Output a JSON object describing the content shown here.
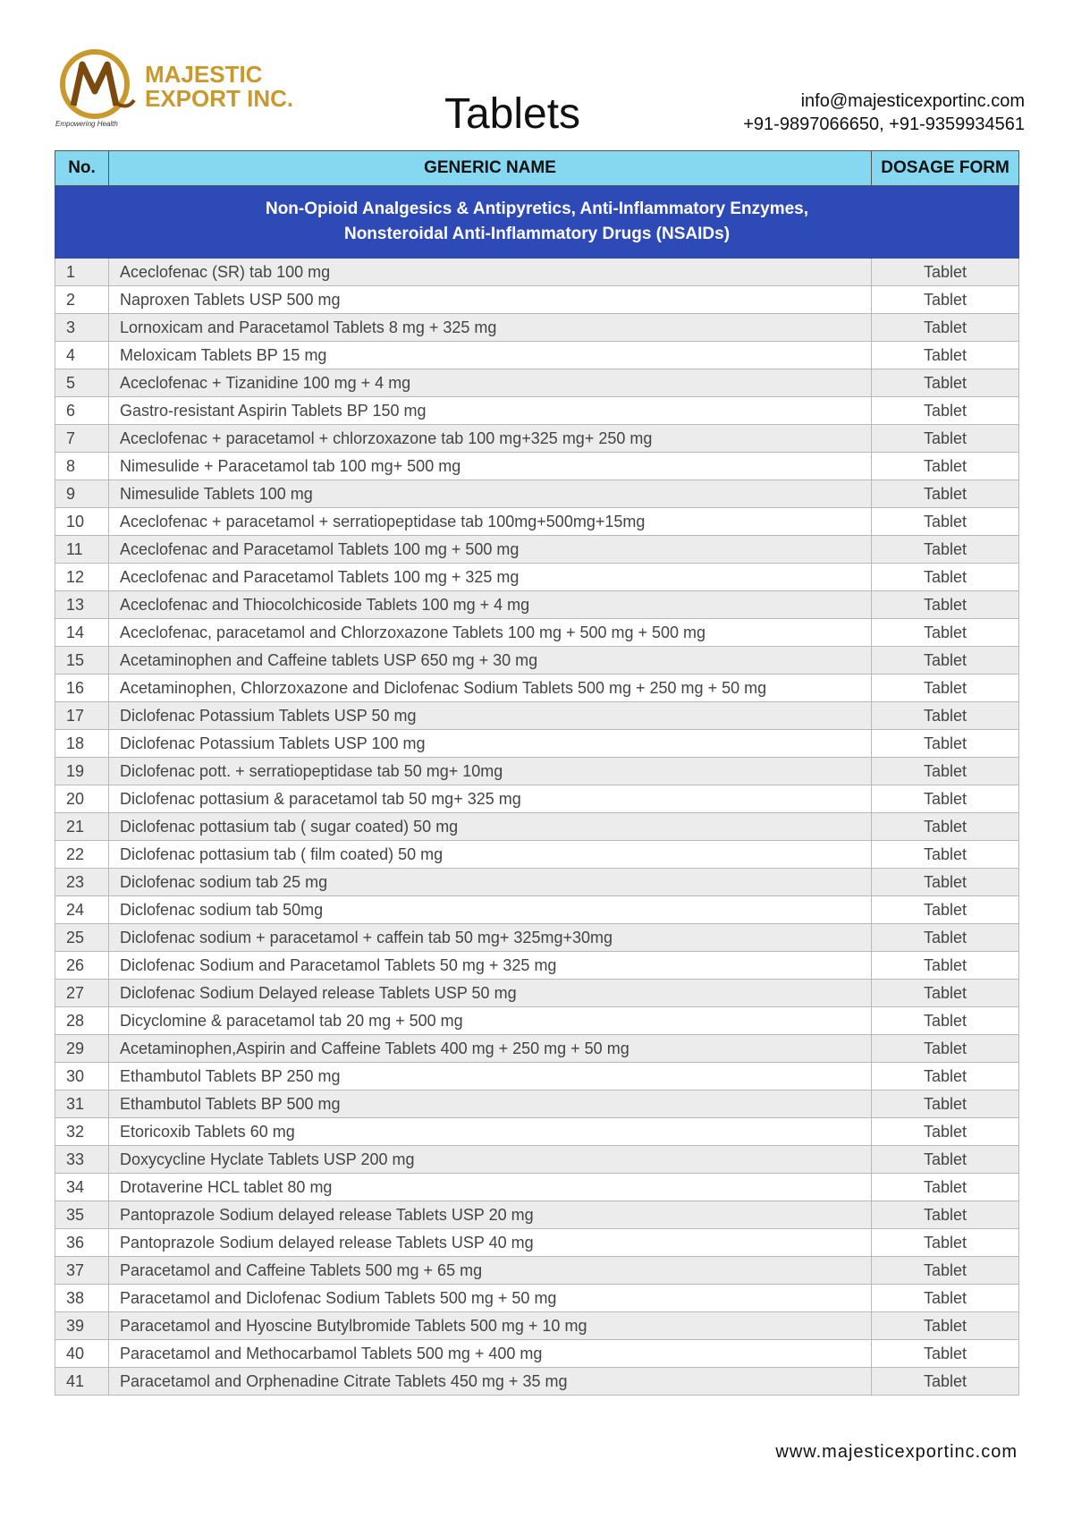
{
  "header": {
    "brand_line1": "MAJESTIC",
    "brand_line2": "EXPORT INC.",
    "tagline": "Empowering Health",
    "title": "Tablets",
    "email": "info@majesticexportinc.com",
    "phone": "+91-9897066650, +91-9359934561"
  },
  "table": {
    "columns": [
      "No.",
      "GENERIC  NAME",
      "DOSAGE FORM"
    ],
    "section": [
      "Non-Opioid Analgesics & Antipyretics,  Anti-Inflammatory Enzymes,",
      "Nonsteroidal Anti-Inflammatory Drugs (NSAIDs)"
    ],
    "rows": [
      [
        "1",
        "Aceclofenac  (SR) tab 100 mg",
        "Tablet"
      ],
      [
        "2",
        "Naproxen Tablets USP   500 mg",
        "Tablet"
      ],
      [
        "3",
        "Lornoxicam and Paracetamol Tablets  8 mg + 325 mg",
        "Tablet"
      ],
      [
        "4",
        "Meloxicam Tablets BP   15 mg",
        "Tablet"
      ],
      [
        "5",
        "Aceclofenac  + Tizanidine  100 mg + 4 mg",
        "Tablet"
      ],
      [
        "6",
        "Gastro-resistant Aspirin Tablets BP  150 mg",
        "Tablet"
      ],
      [
        "7",
        "Aceclofenac + paracetamol + chlorzoxazone tab 100 mg+325 mg+ 250 mg",
        "Tablet"
      ],
      [
        "8",
        "Nimesulide  + Paracetamol tab 100 mg+ 500 mg",
        "Tablet"
      ],
      [
        "9",
        "Nimesulide Tablets  100 mg",
        "Tablet"
      ],
      [
        "10",
        "Aceclofenac + paracetamol + serratiopeptidase  tab 100mg+500mg+15mg",
        "Tablet"
      ],
      [
        "11",
        "Aceclofenac and Paracetamol Tablets  100 mg + 500 mg",
        "Tablet"
      ],
      [
        "12",
        "Aceclofenac and Paracetamol Tablets  100 mg + 325 mg",
        "Tablet"
      ],
      [
        "13",
        "Aceclofenac and Thiocolchicoside Tablets  100 mg +  4 mg",
        "Tablet"
      ],
      [
        "14",
        "Aceclofenac, paracetamol and Chlorzoxazone Tablets  100 mg + 500 mg + 500 mg",
        "Tablet"
      ],
      [
        "15",
        "Acetaminophen and Caffeine tablets USP  650 mg + 30 mg",
        "Tablet"
      ],
      [
        "16",
        "Acetaminophen, Chlorzoxazone and Diclofenac Sodium Tablets  500 mg + 250 mg + 50 mg",
        "Tablet"
      ],
      [
        "17",
        "Diclofenac Potassium Tablets USP    50 mg",
        "Tablet"
      ],
      [
        "18",
        "Diclofenac Potassium Tablets USP    100 mg",
        "Tablet"
      ],
      [
        "19",
        "Diclofenac pott. + serratiopeptidase tab 50 mg+ 10mg",
        "Tablet"
      ],
      [
        "20",
        "Diclofenac pottasium  & paracetamol tab 50 mg+ 325 mg",
        "Tablet"
      ],
      [
        "21",
        "Diclofenac pottasium  tab ( sugar coated) 50 mg",
        "Tablet"
      ],
      [
        "22",
        "Diclofenac pottasium tab ( film coated) 50 mg",
        "Tablet"
      ],
      [
        "23",
        "Diclofenac sodium  tab 25 mg",
        "Tablet"
      ],
      [
        "24",
        "Diclofenac sodium  tab 50mg",
        "Tablet"
      ],
      [
        "25",
        "Diclofenac sodium + paracetamol + caffein tab 50 mg+ 325mg+30mg",
        "Tablet"
      ],
      [
        "26",
        "Diclofenac Sodium and Paracetamol Tablets   50 mg + 325 mg",
        "Tablet"
      ],
      [
        "27",
        "Diclofenac Sodium Delayed release Tablets USP   50 mg",
        "Tablet"
      ],
      [
        "28",
        "Dicyclomine & paracetamol tab 20 mg + 500 mg",
        "Tablet"
      ],
      [
        "29",
        "Acetaminophen,Aspirin and Caffeine Tablets  400 mg + 250 mg + 50 mg",
        "Tablet"
      ],
      [
        "30",
        "Ethambutol Tablets BP   250 mg",
        "Tablet"
      ],
      [
        "31",
        "Ethambutol Tablets BP   500 mg",
        "Tablet"
      ],
      [
        "32",
        "Etoricoxib Tablets   60 mg",
        "Tablet"
      ],
      [
        "33",
        "Doxycycline Hyclate Tablets USP   200 mg",
        "Tablet"
      ],
      [
        "34",
        "Drotaverine  HCL tablet 80 mg",
        "Tablet"
      ],
      [
        "35",
        "Pantoprazole Sodium delayed release Tablets USP   20 mg",
        "Tablet"
      ],
      [
        "36",
        "Pantoprazole Sodium delayed release Tablets USP   40 mg",
        "Tablet"
      ],
      [
        "37",
        "Paracetamol and Caffeine Tablets   500 mg + 65 mg",
        "Tablet"
      ],
      [
        "38",
        "Paracetamol and Diclofenac Sodium Tablets  500 mg + 50 mg",
        "Tablet"
      ],
      [
        "39",
        "Paracetamol and Hyoscine Butylbromide Tablets  500 mg + 10 mg",
        "Tablet"
      ],
      [
        "40",
        "Paracetamol and Methocarbamol Tablets  500 mg + 400 mg",
        "Tablet"
      ],
      [
        "41",
        "Paracetamol and Orphenadine Citrate Tablets  450 mg + 35 mg",
        "Tablet"
      ]
    ]
  },
  "footer": {
    "website": "www.majesticexportinc.com"
  }
}
